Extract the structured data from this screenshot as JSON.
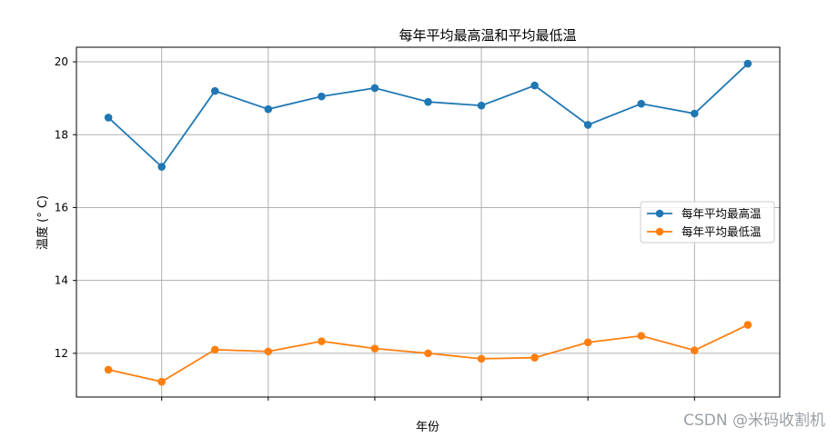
{
  "chart_data": {
    "type": "line",
    "title": "每年平均最高温和平均最低温",
    "xlabel": "年份",
    "ylabel": "温度 (° C)",
    "ylim": [
      10.8,
      20.4
    ],
    "yticks": [
      12,
      14,
      16,
      18,
      20
    ],
    "x": [
      1,
      2,
      3,
      4,
      5,
      6,
      7,
      8,
      9,
      10,
      11,
      12,
      13
    ],
    "xtick_positions": [
      2,
      4,
      6,
      8,
      10,
      12
    ],
    "grid": true,
    "legend_position": "center-right",
    "series": [
      {
        "name": "每年平均最高温",
        "color": "#1f77b4",
        "values": [
          18.47,
          17.12,
          19.2,
          18.7,
          19.05,
          19.28,
          18.9,
          18.8,
          19.35,
          18.27,
          18.85,
          18.58,
          19.95
        ]
      },
      {
        "name": "每年平均最低温",
        "color": "#ff7f0e",
        "values": [
          11.55,
          11.22,
          12.1,
          12.05,
          12.33,
          12.13,
          12.0,
          11.85,
          11.88,
          12.3,
          12.48,
          12.08,
          12.78
        ]
      }
    ]
  },
  "watermark": "CSDN @米码收割机"
}
